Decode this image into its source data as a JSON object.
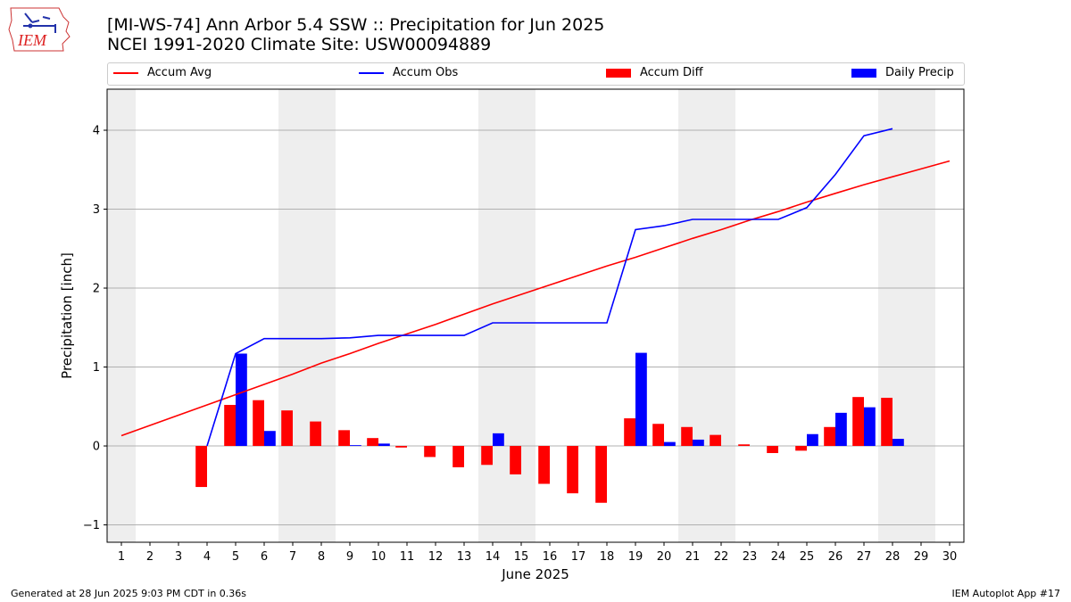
{
  "title_line1": "[MI-WS-74] Ann Arbor 5.4 SSW :: Precipitation for Jun 2025",
  "title_line2": "NCEI 1991-2020 Climate Site: USW00094889",
  "footer_left": "Generated at 28 Jun 2025 9:03 PM CDT in 0.36s",
  "footer_right": "IEM Autoplot App #17",
  "logo_text": "IEM",
  "colors": {
    "accum_avg": "#ff0000",
    "accum_obs": "#0000ff",
    "accum_diff": "#ff0000",
    "daily_precip": "#0000ff",
    "weekend_band": "#eeeeee",
    "grid": "#b0b0b0"
  },
  "chart_data": {
    "type": "bar",
    "xlabel": "June 2025",
    "ylabel": "Precipitation [inch]",
    "xlim": [
      0.5,
      30.5
    ],
    "ylim": [
      -1.22,
      4.52
    ],
    "yticks": [
      -1,
      0,
      1,
      2,
      3,
      4
    ],
    "xticks": [
      1,
      2,
      3,
      4,
      5,
      6,
      7,
      8,
      9,
      10,
      11,
      12,
      13,
      14,
      15,
      16,
      17,
      18,
      19,
      20,
      21,
      22,
      23,
      24,
      25,
      26,
      27,
      28,
      29,
      30
    ],
    "grid": "horizontal",
    "legend_placement": "top",
    "weekend_days": [
      1,
      7,
      8,
      14,
      15,
      21,
      22,
      28,
      29
    ],
    "series": [
      {
        "name": "Accum Avg",
        "kind": "line",
        "x": [
          1,
          2,
          3,
          4,
          5,
          6,
          7,
          8,
          9,
          10,
          11,
          12,
          13,
          14,
          15,
          16,
          17,
          18,
          19,
          20,
          21,
          22,
          23,
          24,
          25,
          26,
          27,
          28,
          29,
          30
        ],
        "values": [
          0.13,
          0.26,
          0.39,
          0.52,
          0.65,
          0.78,
          0.91,
          1.05,
          1.17,
          1.3,
          1.42,
          1.54,
          1.67,
          1.8,
          1.92,
          2.04,
          2.16,
          2.28,
          2.39,
          2.51,
          2.63,
          2.74,
          2.86,
          2.97,
          3.09,
          3.2,
          3.31,
          3.41,
          3.51,
          3.61
        ]
      },
      {
        "name": "Accum Obs",
        "kind": "line",
        "x": [
          4,
          5,
          6,
          7,
          8,
          9,
          10,
          11,
          12,
          13,
          14,
          15,
          16,
          17,
          18,
          19,
          20,
          21,
          22,
          23,
          24,
          25,
          26,
          27,
          28
        ],
        "values": [
          0.0,
          1.17,
          1.36,
          1.36,
          1.36,
          1.37,
          1.4,
          1.4,
          1.4,
          1.4,
          1.56,
          1.56,
          1.56,
          1.56,
          1.56,
          2.74,
          2.79,
          2.87,
          2.87,
          2.87,
          2.87,
          3.02,
          3.44,
          3.93,
          4.02
        ]
      },
      {
        "name": "Accum Diff",
        "kind": "bar",
        "x": [
          4,
          5,
          6,
          7,
          8,
          9,
          10,
          11,
          12,
          13,
          14,
          15,
          16,
          17,
          18,
          19,
          20,
          21,
          22,
          23,
          24,
          25,
          26,
          27,
          28
        ],
        "values": [
          -0.52,
          0.52,
          0.58,
          0.45,
          0.31,
          0.2,
          0.1,
          -0.02,
          -0.14,
          -0.27,
          -0.24,
          -0.36,
          -0.48,
          -0.6,
          -0.72,
          0.35,
          0.28,
          0.24,
          0.14,
          0.02,
          -0.09,
          -0.06,
          0.24,
          0.62,
          0.61
        ]
      },
      {
        "name": "Daily Precip",
        "kind": "bar",
        "x": [
          5,
          6,
          9,
          10,
          14,
          19,
          20,
          21,
          25,
          26,
          27,
          28
        ],
        "values": [
          1.17,
          0.19,
          0.01,
          0.03,
          0.16,
          1.18,
          0.05,
          0.08,
          0.15,
          0.42,
          0.49,
          0.09
        ]
      }
    ]
  }
}
